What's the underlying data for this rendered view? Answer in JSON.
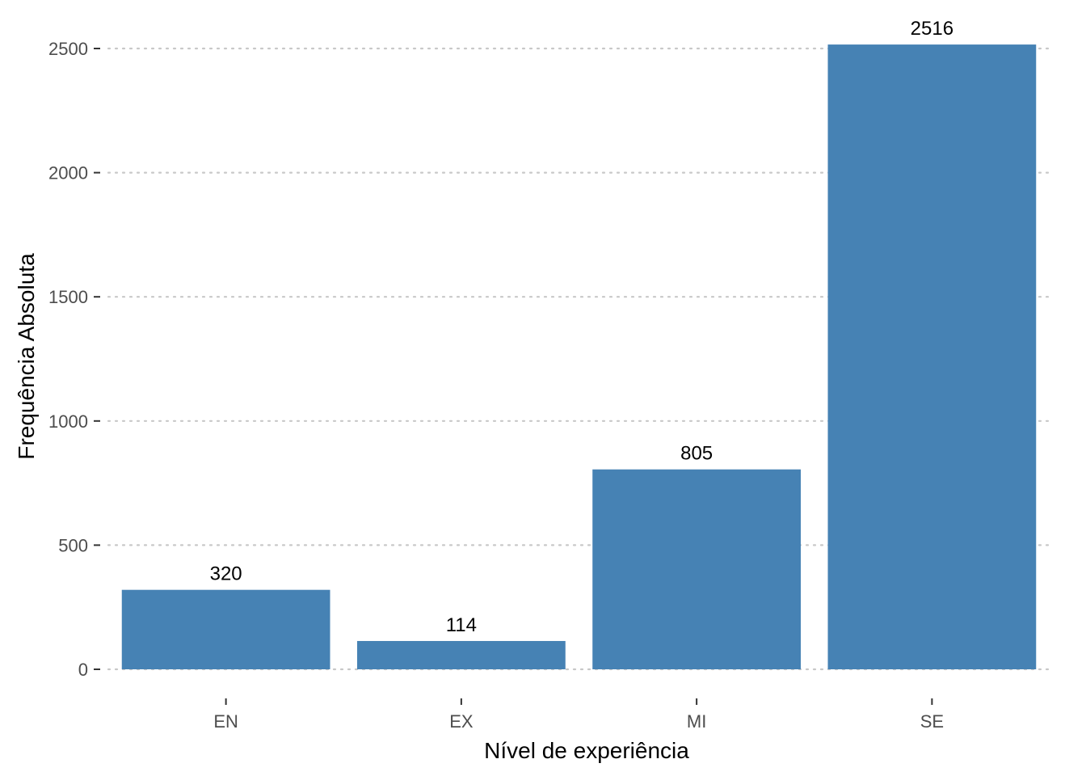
{
  "chart_data": {
    "type": "bar",
    "categories": [
      "EN",
      "EX",
      "MI",
      "SE"
    ],
    "values": [
      320,
      114,
      805,
      2516
    ],
    "data_labels": [
      "320",
      "114",
      "805",
      "2516"
    ],
    "xlabel": "Nível de experiência",
    "ylabel": "Frequência Absoluta",
    "ylim": [
      0,
      2500
    ],
    "yticks": [
      0,
      500,
      1000,
      1500,
      2000,
      2500
    ],
    "ytick_labels": [
      "0",
      "500",
      "1000",
      "1500",
      "2000",
      "2500"
    ],
    "grid": "horizontal-dotted",
    "legend": "none",
    "colors": {
      "bar": "#4682B4"
    }
  }
}
